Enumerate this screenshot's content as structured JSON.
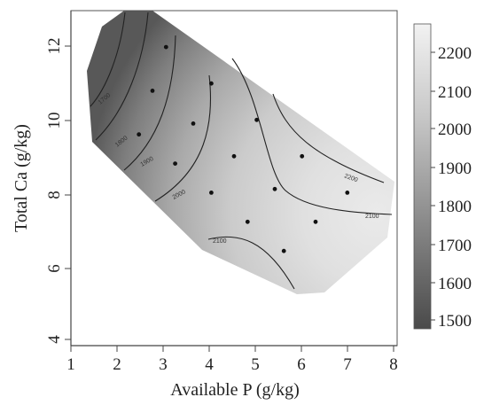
{
  "chart_data": {
    "type": "contour",
    "title": "",
    "xlabel": "Available P (g/kg)",
    "ylabel": "Total Ca (g/kg)",
    "xlim": [
      0.9,
      8.1
    ],
    "ylim": [
      3.8,
      13.0
    ],
    "xticks": [
      "1",
      "2",
      "3",
      "4",
      "5",
      "6",
      "7",
      "8"
    ],
    "yticks": [
      "4",
      "6",
      "8",
      "10",
      "12"
    ],
    "colorbar": {
      "ticks": [
        "1500",
        "1600",
        "1700",
        "1800",
        "1900",
        "2000",
        "2100",
        "2200"
      ],
      "range": [
        1470,
        2260
      ],
      "colors": [
        "#4a4a4a",
        "#f2f2f2"
      ]
    },
    "contour_labels": [
      "1700",
      "1800",
      "1900",
      "2000",
      "2100",
      "2100",
      "2200"
    ],
    "points": [
      {
        "x": 3.0,
        "y": 12.0
      },
      {
        "x": 2.7,
        "y": 10.8
      },
      {
        "x": 4.0,
        "y": 11.0
      },
      {
        "x": 2.4,
        "y": 9.6
      },
      {
        "x": 3.6,
        "y": 9.9
      },
      {
        "x": 5.0,
        "y": 10.0
      },
      {
        "x": 3.2,
        "y": 8.8
      },
      {
        "x": 4.5,
        "y": 9.0
      },
      {
        "x": 6.0,
        "y": 9.0
      },
      {
        "x": 4.0,
        "y": 8.0
      },
      {
        "x": 5.4,
        "y": 8.1
      },
      {
        "x": 7.0,
        "y": 8.0
      },
      {
        "x": 4.8,
        "y": 7.2
      },
      {
        "x": 6.3,
        "y": 7.2
      },
      {
        "x": 5.6,
        "y": 6.4
      }
    ]
  }
}
